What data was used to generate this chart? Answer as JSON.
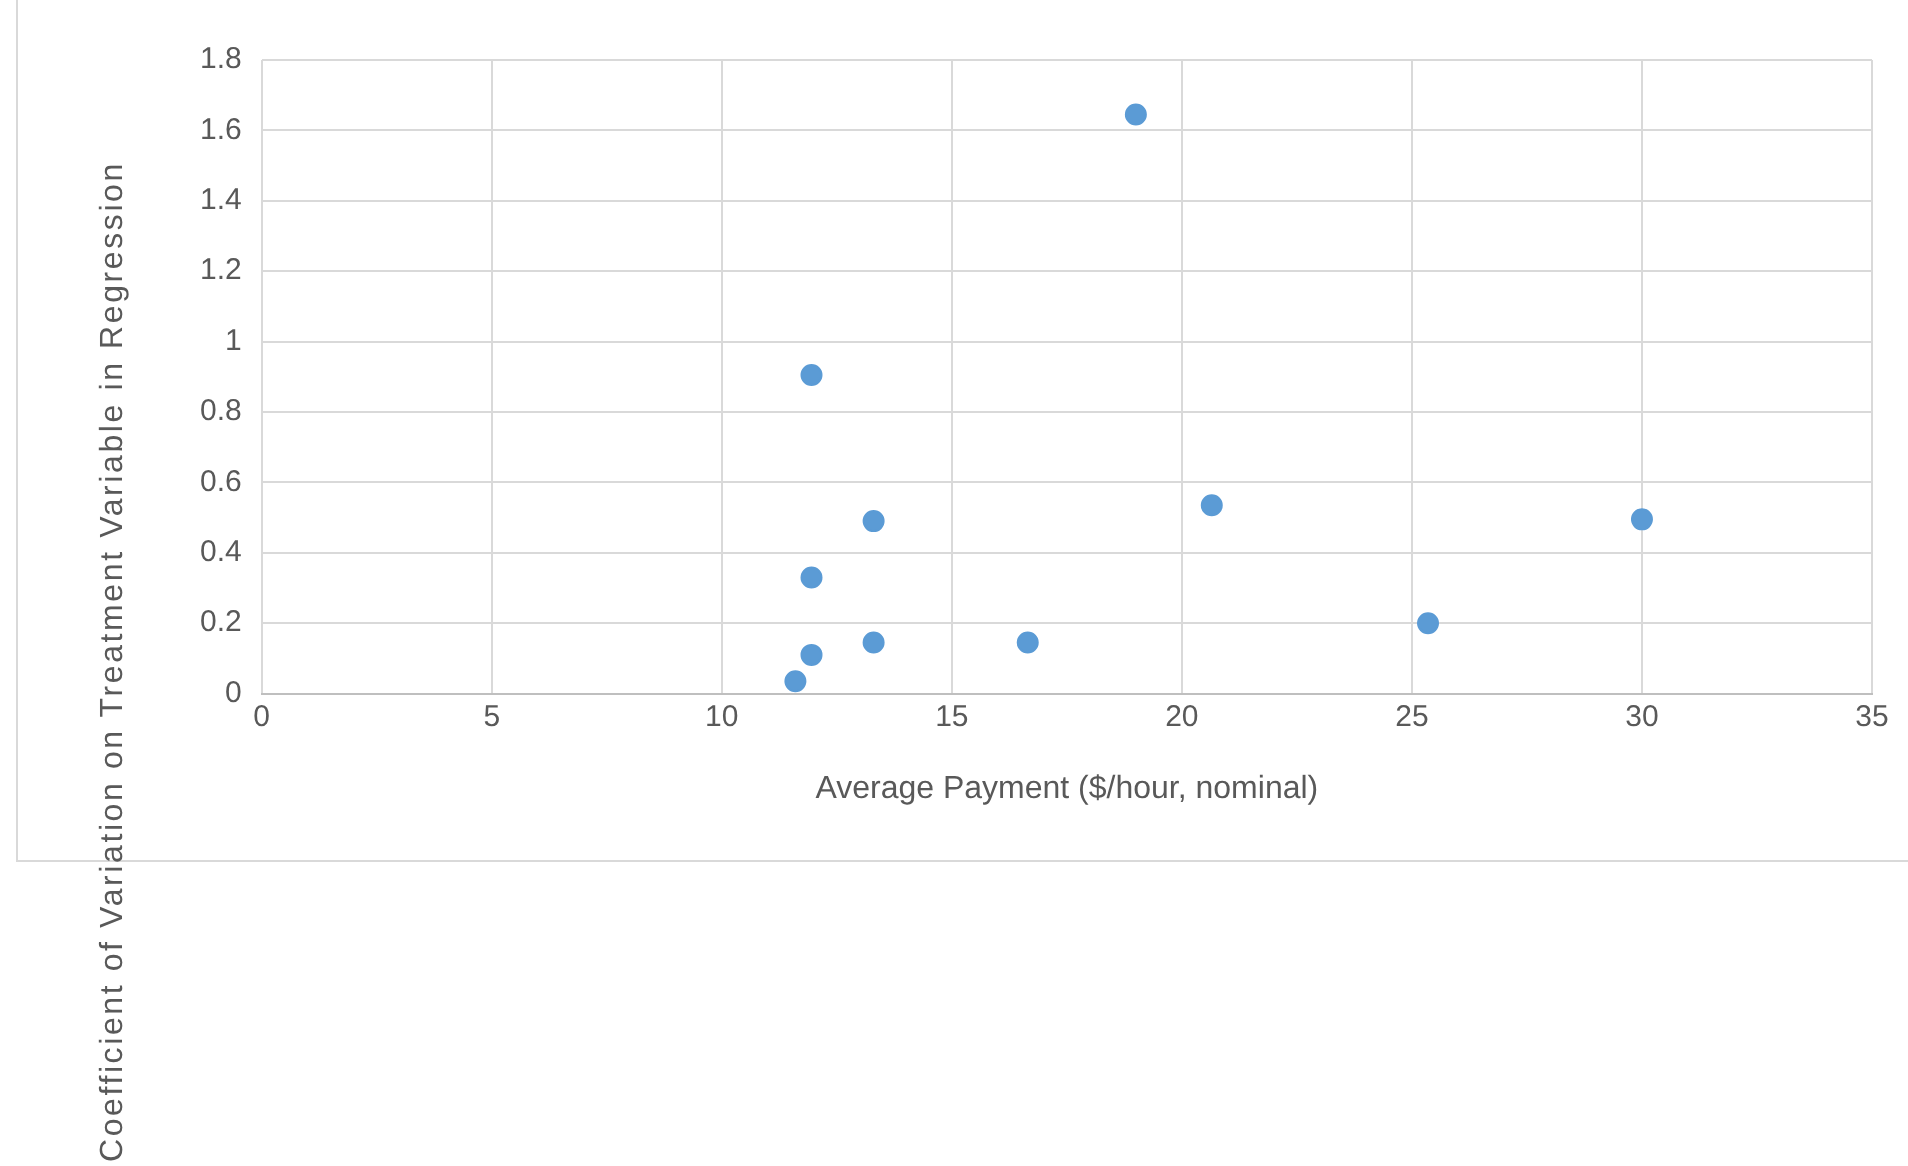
{
  "chart_data": {
    "type": "scatter",
    "xlabel": "Average Payment ($/hour, nominal)",
    "ylabel": "Coefficient of Variation on Treatment Variable in Regression",
    "x": [
      11.6,
      11.95,
      11.95,
      11.95,
      13.3,
      13.3,
      16.65,
      19.0,
      20.65,
      25.35,
      30.0
    ],
    "series": [
      {
        "color": "#5b9bd5",
        "values": [
          0.035,
          0.11,
          0.33,
          0.905,
          0.49,
          0.145,
          0.145,
          1.645,
          0.535,
          0.2,
          0.495
        ]
      }
    ],
    "xlim": [
      0,
      35
    ],
    "xticks": [
      0,
      5,
      10,
      15,
      20,
      25,
      30,
      35
    ],
    "ylim": [
      0,
      1.8
    ],
    "yticks": [
      0,
      0.2,
      0.4,
      0.6,
      0.8,
      1,
      1.2,
      1.4,
      1.6,
      1.8
    ],
    "grid": true,
    "legend": false,
    "marker": "circle"
  }
}
